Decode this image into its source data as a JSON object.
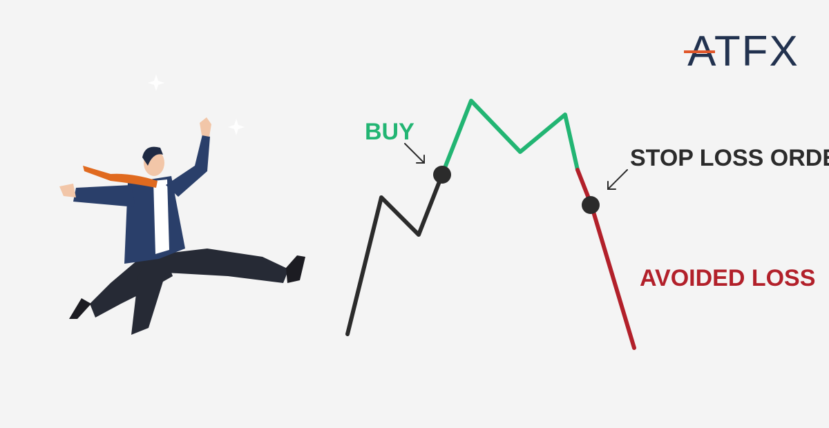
{
  "logo": {
    "text": "ATFX"
  },
  "labels": {
    "buy": "BUY",
    "stop_loss": "STOP LOSS ORDER",
    "avoided_loss": "AVOIDED LOSS"
  },
  "colors": {
    "background": "#f4f4f4",
    "price_before": "#2b2b2b",
    "price_after_buy": "#22b573",
    "price_after_stop": "#b2202a",
    "marker": "#2b2b2b",
    "logo": "#22324f",
    "logo_accent": "#e0572a"
  }
}
